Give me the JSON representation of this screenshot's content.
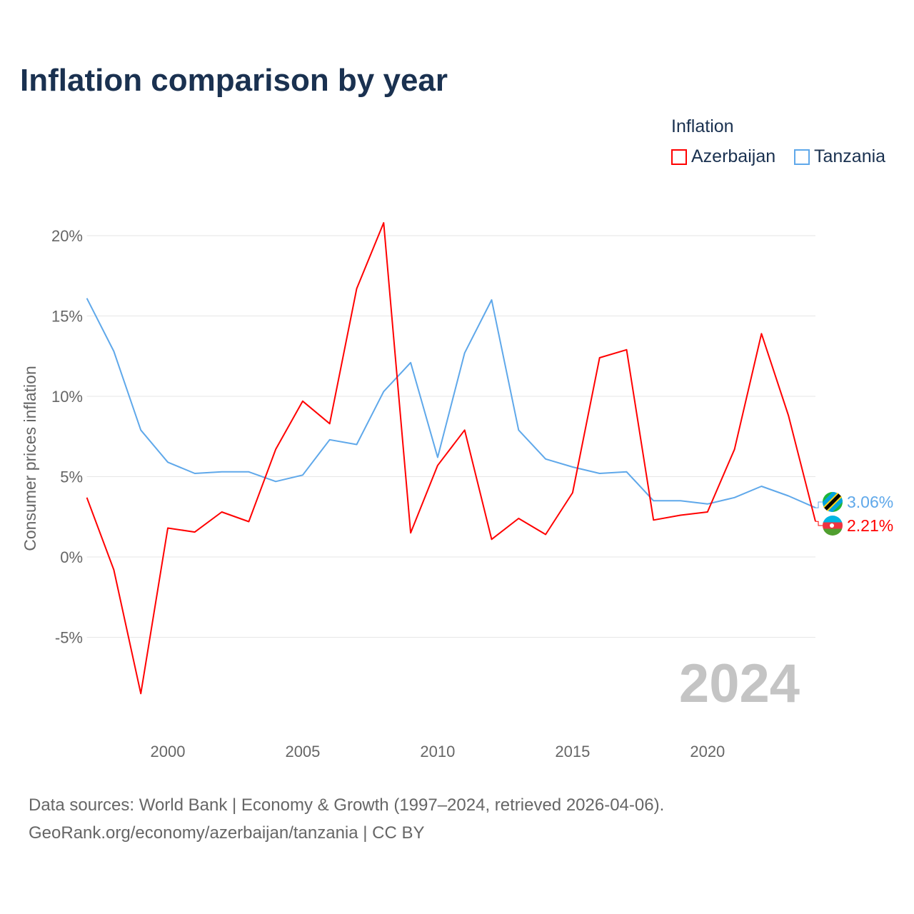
{
  "title": "Inflation comparison by year",
  "legend_title": "Inflation",
  "source_lines": [
    "Data sources: World Bank | Economy & Growth (1997–2024, retrieved 2026-04-06).",
    "GeoRank.org/economy/azerbaijan/tanzania | CC BY"
  ],
  "year_watermark": "2024",
  "chart_data": {
    "type": "line",
    "title": "Inflation comparison by year",
    "xlabel": "",
    "ylabel": "Consumer prices inflation",
    "xlim": [
      1997,
      2024
    ],
    "ylim": [
      -10,
      22
    ],
    "yticks": [
      -5,
      0,
      5,
      10,
      15,
      20
    ],
    "ytick_labels": [
      "-5%",
      "0%",
      "5%",
      "10%",
      "15%",
      "20%"
    ],
    "xticks": [
      2000,
      2005,
      2010,
      2015,
      2020
    ],
    "xtick_labels": [
      "2000",
      "2005",
      "2010",
      "2015",
      "2020"
    ],
    "grid": true,
    "legend": "top-right",
    "x": [
      1997,
      1998,
      1999,
      2000,
      2001,
      2002,
      2003,
      2004,
      2005,
      2006,
      2007,
      2008,
      2009,
      2010,
      2011,
      2012,
      2013,
      2014,
      2015,
      2016,
      2017,
      2018,
      2019,
      2020,
      2021,
      2022,
      2023,
      2024
    ],
    "series": [
      {
        "name": "Azerbaijan",
        "color": "#ff0000",
        "end_label": "2.21%",
        "values": [
          3.7,
          -0.8,
          -8.5,
          1.8,
          1.55,
          2.8,
          2.2,
          6.7,
          9.7,
          8.3,
          16.7,
          20.8,
          1.5,
          5.7,
          7.9,
          1.1,
          2.4,
          1.4,
          4.0,
          12.4,
          12.9,
          2.3,
          2.6,
          2.8,
          6.7,
          13.9,
          8.8,
          2.21
        ]
      },
      {
        "name": "Tanzania",
        "color": "#5fa8ea",
        "end_label": "3.06%",
        "values": [
          16.1,
          12.8,
          7.9,
          5.9,
          5.2,
          5.3,
          5.3,
          4.7,
          5.1,
          7.3,
          7.0,
          10.3,
          12.1,
          6.2,
          12.7,
          16.0,
          7.9,
          6.1,
          5.6,
          5.2,
          5.3,
          3.5,
          3.5,
          3.3,
          3.7,
          4.4,
          3.8,
          3.06
        ]
      }
    ]
  }
}
